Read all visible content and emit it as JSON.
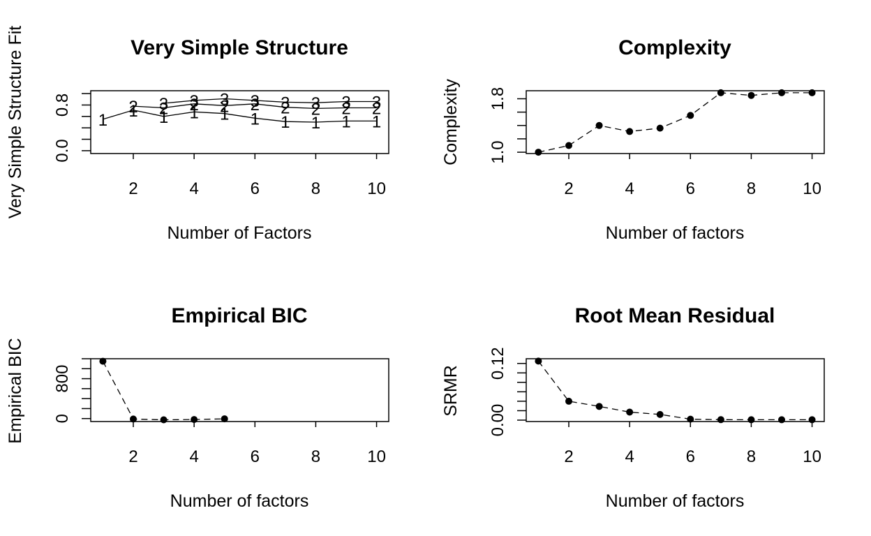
{
  "chart_data": [
    {
      "type": "line",
      "title": "Very Simple Structure",
      "xlabel": "Number of Factors",
      "ylabel": "Very Simple Structure Fit",
      "xlim": [
        0.6,
        10.4
      ],
      "ylim": [
        -0.05,
        1.05
      ],
      "x_ticks": [
        2,
        4,
        6,
        8,
        10
      ],
      "y_ticks": [
        0.0,
        0.2,
        0.4,
        0.6,
        0.8,
        1.0
      ],
      "y_tick_labels": [
        "0.0",
        "",
        "",
        "",
        "0.8",
        ""
      ],
      "marker": "label",
      "series": [
        {
          "name": "1",
          "x": [
            1,
            2,
            3,
            4,
            5,
            6,
            7,
            8,
            9,
            10
          ],
          "values": [
            0.55,
            0.71,
            0.6,
            0.68,
            0.65,
            0.57,
            0.51,
            0.5,
            0.52,
            0.52
          ]
        },
        {
          "name": "2",
          "x": [
            2,
            3,
            4,
            5,
            6,
            7,
            8,
            9,
            10
          ],
          "values": [
            0.78,
            0.75,
            0.82,
            0.79,
            0.82,
            0.76,
            0.74,
            0.75,
            0.75
          ]
        },
        {
          "name": "3",
          "x": [
            3,
            4,
            5,
            6,
            7,
            8,
            9,
            10
          ],
          "values": [
            0.83,
            0.88,
            0.91,
            0.88,
            0.85,
            0.84,
            0.86,
            0.86
          ]
        }
      ]
    },
    {
      "type": "line",
      "title": "Complexity",
      "xlabel": "Number of factors",
      "ylabel": "Complexity",
      "xlim": [
        0.6,
        10.4
      ],
      "ylim": [
        0.98,
        1.92
      ],
      "x_ticks": [
        2,
        4,
        6,
        8,
        10
      ],
      "y_ticks": [
        1.0,
        1.2,
        1.4,
        1.6,
        1.8
      ],
      "y_tick_labels": [
        "1.0",
        "",
        "",
        "",
        "1.8"
      ],
      "line_style": "dashed",
      "marker": "point",
      "series": [
        {
          "x": [
            1,
            2,
            3,
            4,
            5,
            6,
            7,
            8,
            9,
            10
          ],
          "values": [
            1.0,
            1.1,
            1.4,
            1.31,
            1.36,
            1.55,
            1.89,
            1.85,
            1.89,
            1.89
          ]
        }
      ]
    },
    {
      "type": "line",
      "title": "Empirical BIC",
      "xlabel": "Number of factors",
      "ylabel": "Empirical BIC",
      "xlim": [
        0.6,
        10.4
      ],
      "ylim": [
        -60,
        1200
      ],
      "x_ticks": [
        2,
        4,
        6,
        8,
        10
      ],
      "y_ticks": [
        0,
        200,
        400,
        600,
        800,
        1000,
        1200
      ],
      "y_tick_labels": [
        "0",
        "",
        "",
        "",
        "800",
        "",
        ""
      ],
      "line_style": "dashed",
      "marker": "point",
      "series": [
        {
          "x": [
            1,
            2,
            3,
            4,
            5
          ],
          "values": [
            1150,
            -10,
            -25,
            -20,
            -5
          ]
        }
      ]
    },
    {
      "type": "line",
      "title": "Root Mean Residual",
      "xlabel": "Number of factors",
      "ylabel": "SRMR",
      "xlim": [
        0.6,
        10.4
      ],
      "ylim": [
        -0.003,
        0.13
      ],
      "x_ticks": [
        2,
        4,
        6,
        8,
        10
      ],
      "y_ticks": [
        0.0,
        0.02,
        0.04,
        0.06,
        0.08,
        0.1,
        0.12
      ],
      "y_tick_labels": [
        "0.00",
        "",
        "",
        "",
        "",
        "",
        "0.12"
      ],
      "line_style": "dashed",
      "marker": "point",
      "series": [
        {
          "x": [
            1,
            2,
            3,
            4,
            5,
            6,
            7,
            8,
            9,
            10
          ],
          "values": [
            0.125,
            0.04,
            0.029,
            0.017,
            0.012,
            0.002,
            0.001,
            0.0008,
            0.0008,
            0.0008
          ]
        }
      ]
    }
  ]
}
